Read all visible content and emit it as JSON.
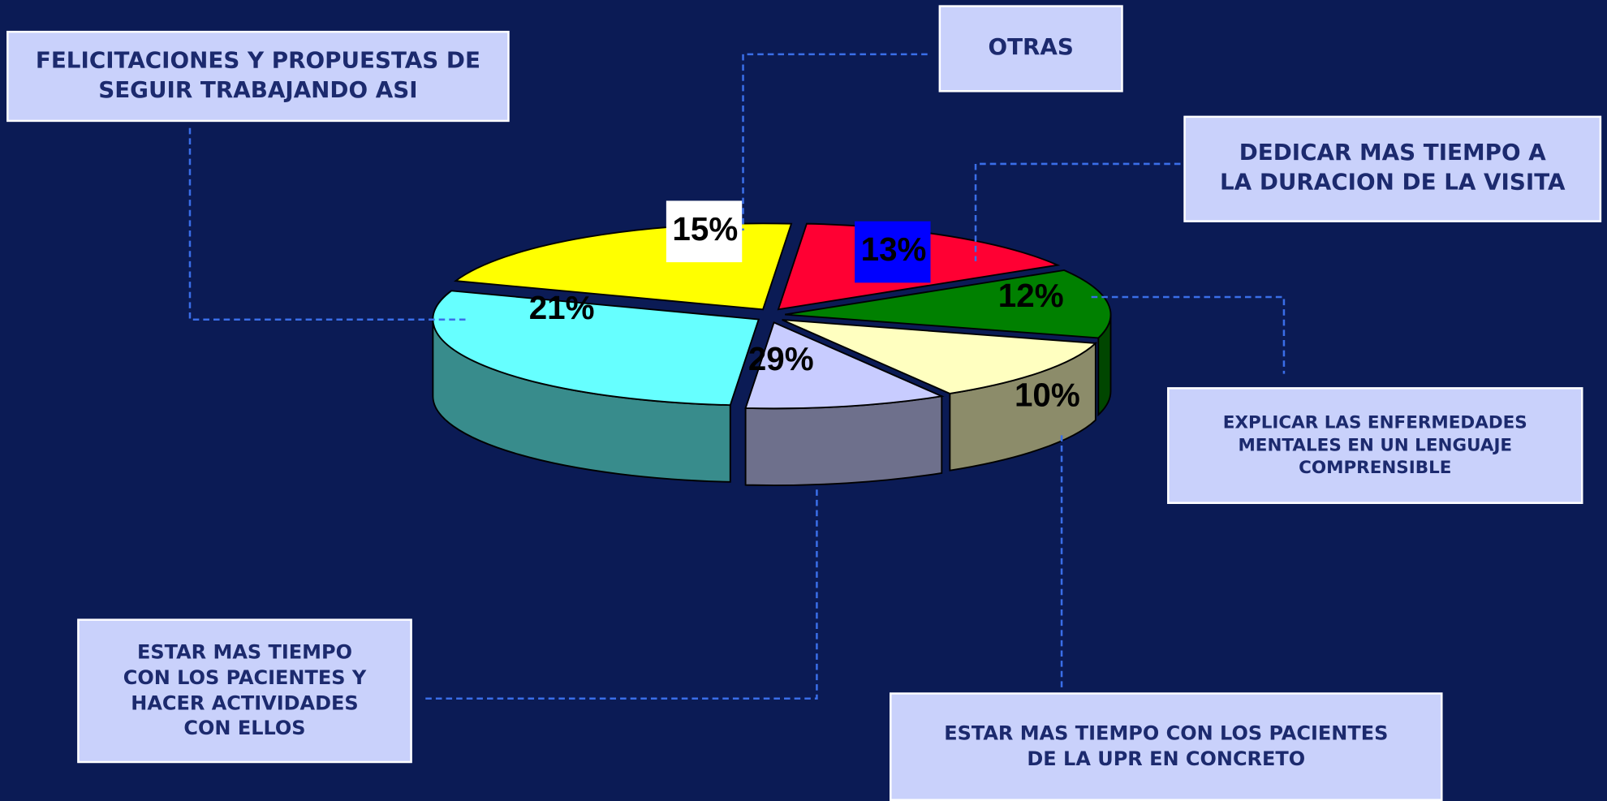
{
  "chart_data": {
    "type": "pie",
    "categories": [
      "OTRAS",
      "DEDICAR MAS TIEMPO A\nLA DURACION DE LA VISITA",
      "EXPLICAR LAS ENFERMEDADES\nMENTALES EN UN LENGUAJE\nCOMPRENSIBLE",
      "ESTAR MAS TIEMPO CON LOS  PACIENTES\nDE LA UPR  EN CONCRETO",
      "ESTAR MAS TIEMPO\nCON LOS PACIENTES Y\nHACER ACTIVIDADES\nCON ELLOS",
      "FELICITACIONES Y PROPUESTAS DE\nSEGUIR TRABAJANDO ASI"
    ],
    "values": [
      15,
      13,
      12,
      10,
      29,
      21
    ],
    "value_labels": [
      "15%",
      "13%",
      "12%",
      "10%",
      "29%",
      "21%"
    ],
    "colors": [
      "#ff0033",
      "#008000",
      "#ffffc0",
      "#c8ccff",
      "#66ffff",
      "#ffff00"
    ],
    "value_label_backgrounds": [
      "#ffffff",
      "#0000ff",
      null,
      null,
      null,
      null
    ]
  }
}
